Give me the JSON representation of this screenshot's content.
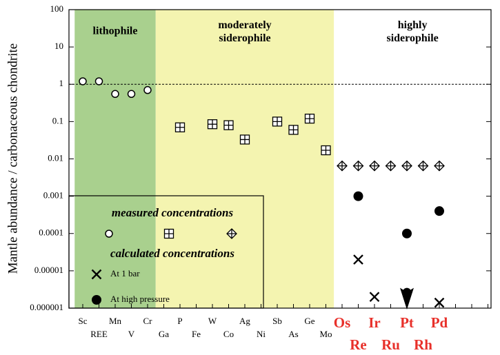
{
  "chart_data": {
    "type": "scatter",
    "y_label": "Mantle abundance / carbonaceous chondrite",
    "y_scale": "log",
    "ylim": [
      1e-06,
      100
    ],
    "yticks": [
      100,
      10,
      1,
      0.1,
      0.01,
      0.001,
      0.0001,
      1e-05,
      1e-06
    ],
    "reference_line": 1,
    "categories": [
      "Sc",
      "REE",
      "Mn",
      "V",
      "Cr",
      "Ga",
      "P",
      "Fe",
      "W",
      "Co",
      "Ag",
      "Ni",
      "Sb",
      "As",
      "Ge",
      "Mo",
      "Os",
      "Re",
      "Ir",
      "Ru",
      "Pt",
      "Rh",
      "Pd",
      null,
      null,
      null
    ],
    "regions": [
      {
        "label": [
          "lithophile"
        ],
        "from": "Sc",
        "to": "Cr",
        "color": "#a9d08e"
      },
      {
        "label": [
          "moderately",
          "siderophile"
        ],
        "from": "Ga",
        "to": "Mo",
        "color": "#f4f4b0"
      },
      {
        "label": [
          "highly",
          "siderophile"
        ],
        "from": "Os",
        "color": "#ffffff",
        "label_color": "#e8302a"
      }
    ],
    "legend": {
      "headings": [
        "measured concentrations",
        "calculated concentrations"
      ]
    },
    "series": [
      {
        "group": 0,
        "marker": "open-circle",
        "color": "#000000",
        "values": [
          1.2,
          1.2,
          0.55,
          0.55,
          0.7,
          null,
          null,
          null,
          null,
          null,
          null,
          null,
          null,
          null,
          null,
          null,
          null,
          null,
          null,
          null,
          null,
          null,
          null,
          null,
          null,
          null
        ]
      },
      {
        "group": 0,
        "marker": "boxed-plus",
        "color": "#000000",
        "values": [
          null,
          null,
          null,
          null,
          null,
          null,
          0.07,
          null,
          0.085,
          0.08,
          0.033,
          null,
          0.1,
          0.06,
          0.12,
          0.017,
          null,
          null,
          null,
          null,
          null,
          null,
          null,
          null,
          null,
          null
        ]
      },
      {
        "group": 0,
        "marker": "diamond-plus",
        "color": "#000000",
        "values": [
          null,
          null,
          null,
          null,
          null,
          null,
          null,
          null,
          null,
          null,
          null,
          null,
          null,
          null,
          null,
          null,
          0.0065,
          0.0065,
          0.0065,
          0.0065,
          0.0065,
          0.0065,
          0.0065,
          null,
          null,
          null
        ]
      },
      {
        "group": 1,
        "name": "At 1 bar",
        "marker": "cross",
        "color": "#000000",
        "downward_arrow_at": "Pt",
        "values": [
          null,
          null,
          null,
          null,
          null,
          null,
          null,
          null,
          null,
          null,
          null,
          null,
          null,
          null,
          null,
          null,
          null,
          2e-05,
          2e-06,
          null,
          2.7e-06,
          null,
          1.4e-06,
          null,
          null,
          null
        ]
      },
      {
        "group": 1,
        "name": "At high pressure",
        "marker": "filled-circle",
        "color": "#000000",
        "values": [
          null,
          null,
          null,
          null,
          null,
          null,
          null,
          null,
          null,
          null,
          null,
          null,
          null,
          null,
          null,
          null,
          null,
          0.001,
          null,
          null,
          0.0001,
          null,
          0.0004,
          null,
          null,
          null
        ]
      }
    ]
  }
}
